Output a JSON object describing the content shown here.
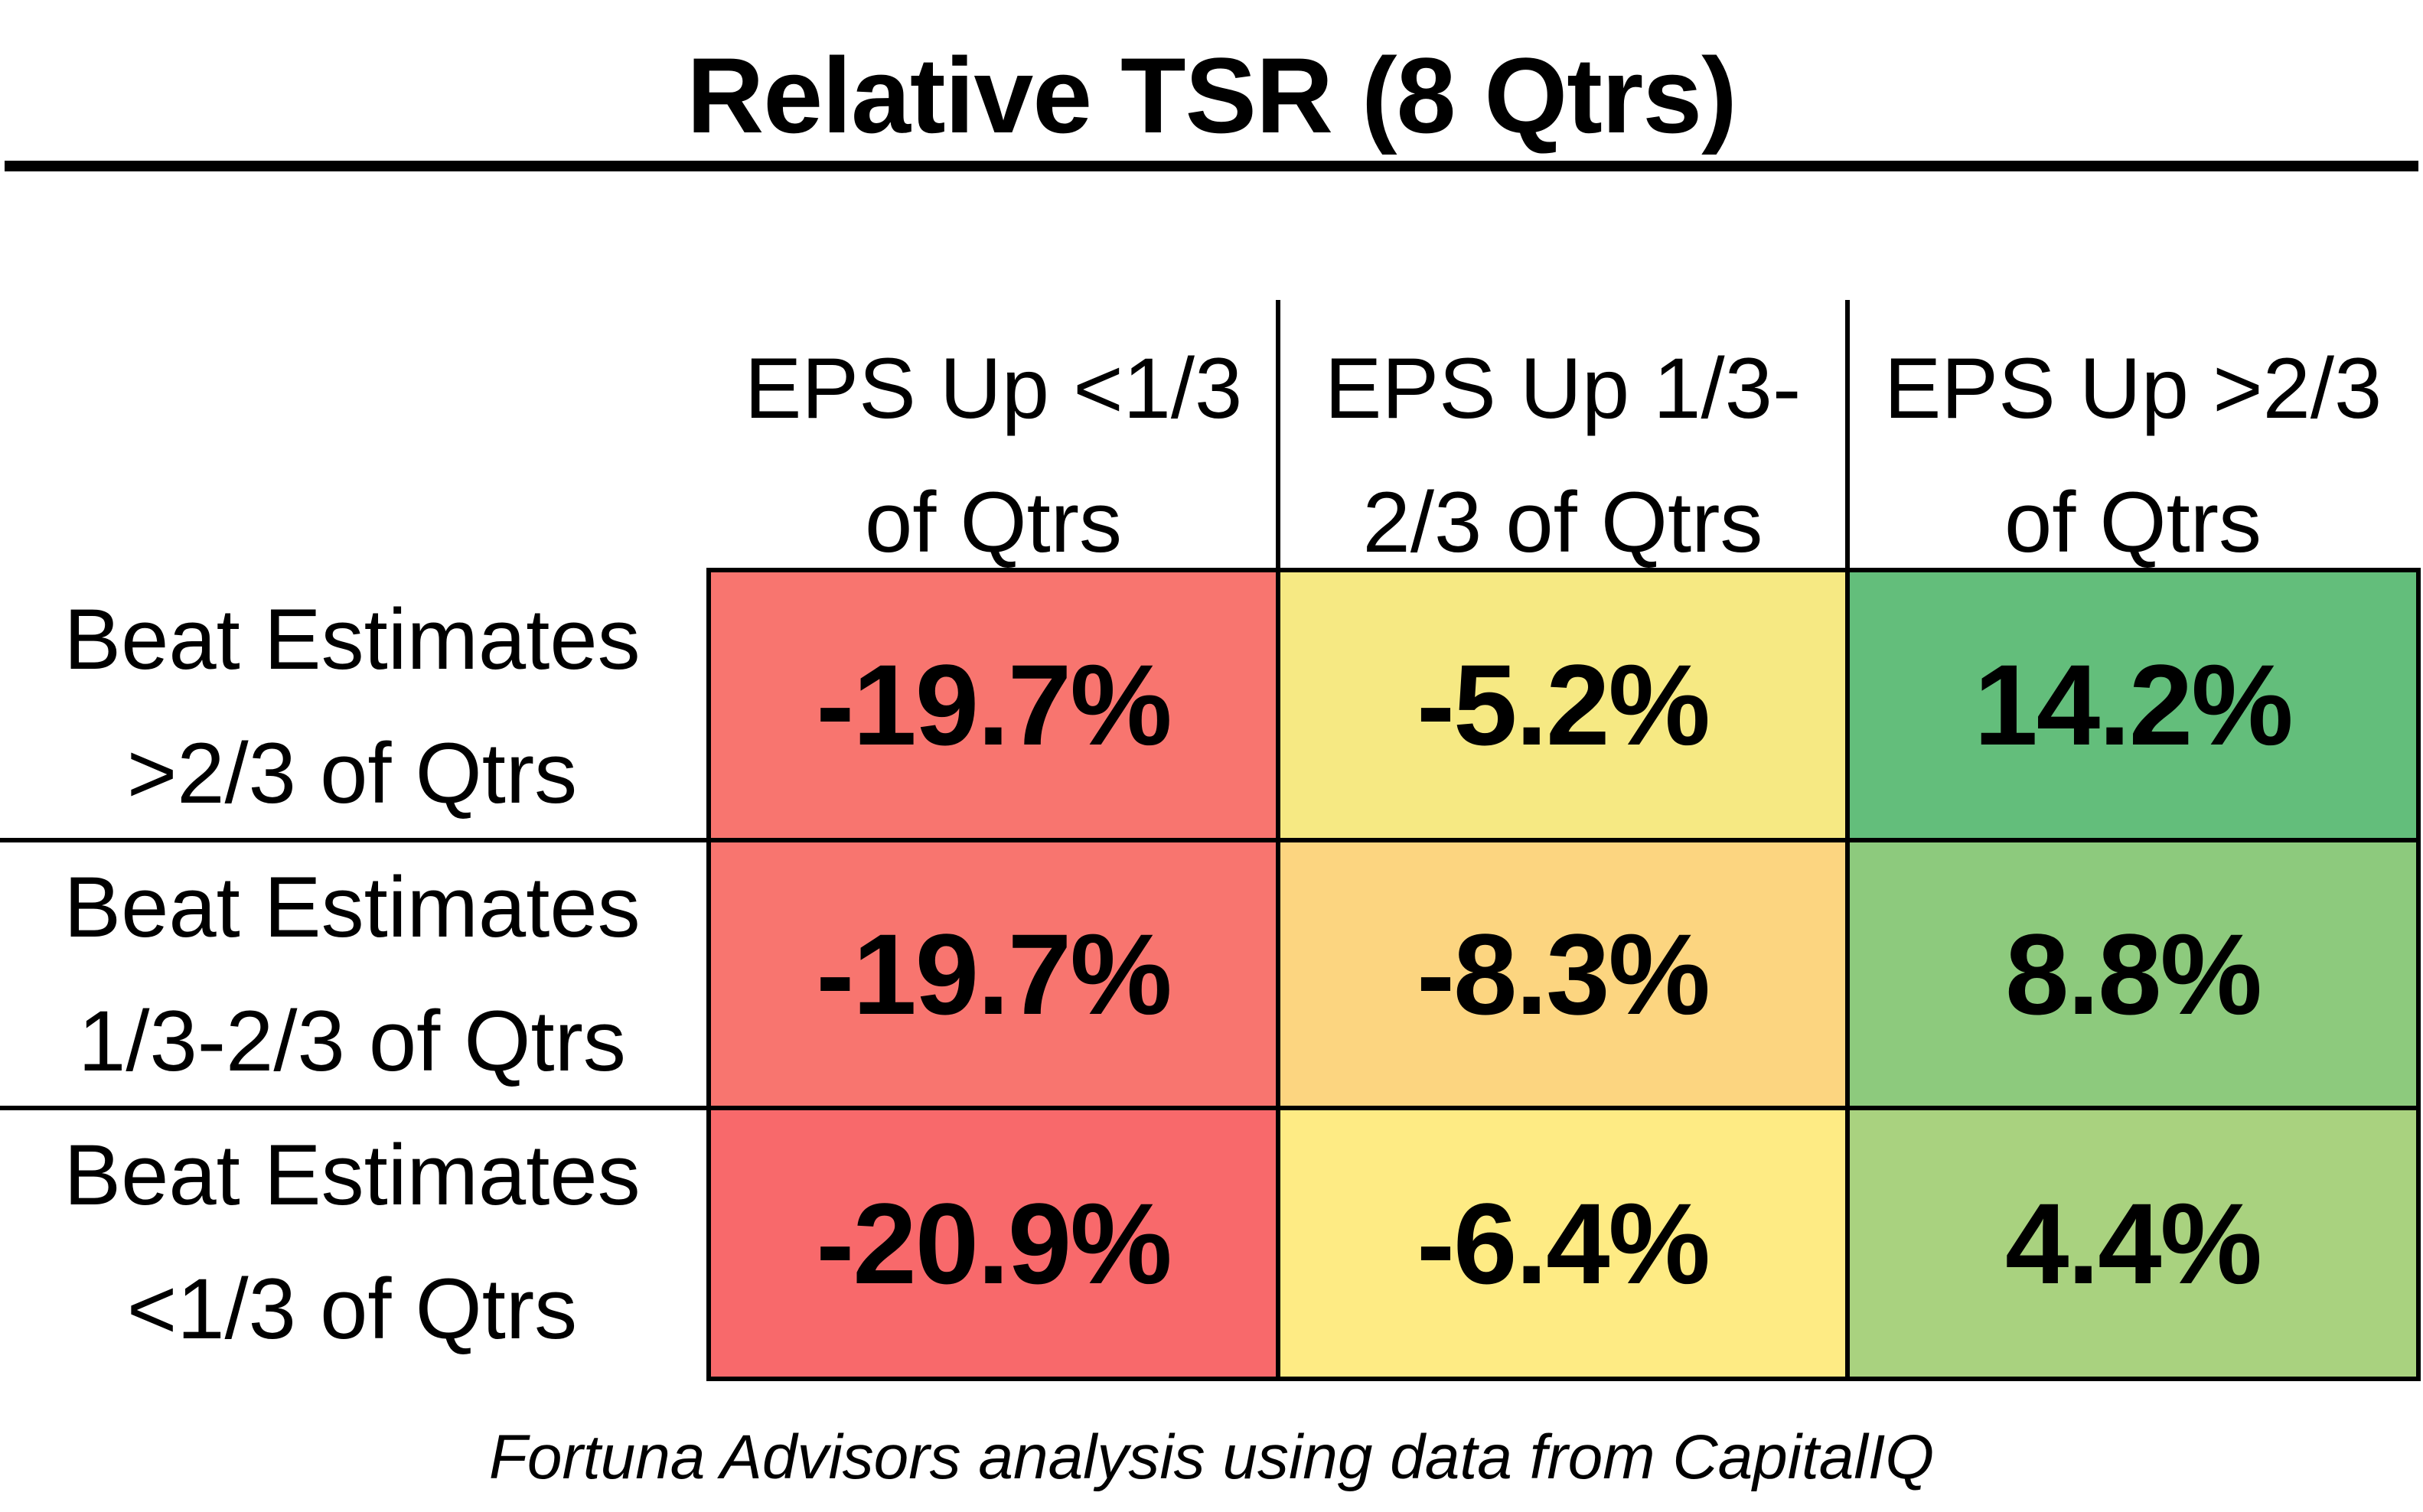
{
  "chart_data": {
    "type": "table",
    "title": "Relative TSR (8 Qtrs)",
    "columns": [
      [
        "EPS Up <1/3",
        "of Qtrs"
      ],
      [
        "EPS Up 1/3-",
        "2/3 of Qtrs"
      ],
      [
        "EPS Up >2/3",
        "of Qtrs"
      ]
    ],
    "rows": [
      {
        "label": [
          "Beat Estimates",
          ">2/3 of Qtrs"
        ],
        "values": [
          "-19.7%",
          "-5.2%",
          "14.2%"
        ],
        "colors": [
          "#f8756f",
          "#f6e983",
          "#63be7b"
        ]
      },
      {
        "label": [
          "Beat Estimates",
          "1/3-2/3 of Qtrs"
        ],
        "values": [
          "-19.7%",
          "-8.3%",
          "8.8%"
        ],
        "colors": [
          "#f8756f",
          "#fcd580",
          "#8dca7d"
        ]
      },
      {
        "label": [
          "Beat Estimates",
          "<1/3 of Qtrs"
        ],
        "values": [
          "-20.9%",
          "-6.4%",
          "4.4%"
        ],
        "colors": [
          "#f8696b",
          "#feeb84",
          "#a9d27f"
        ]
      }
    ],
    "source": "Fortuna Advisors analysis using data from CapitalIQ"
  }
}
